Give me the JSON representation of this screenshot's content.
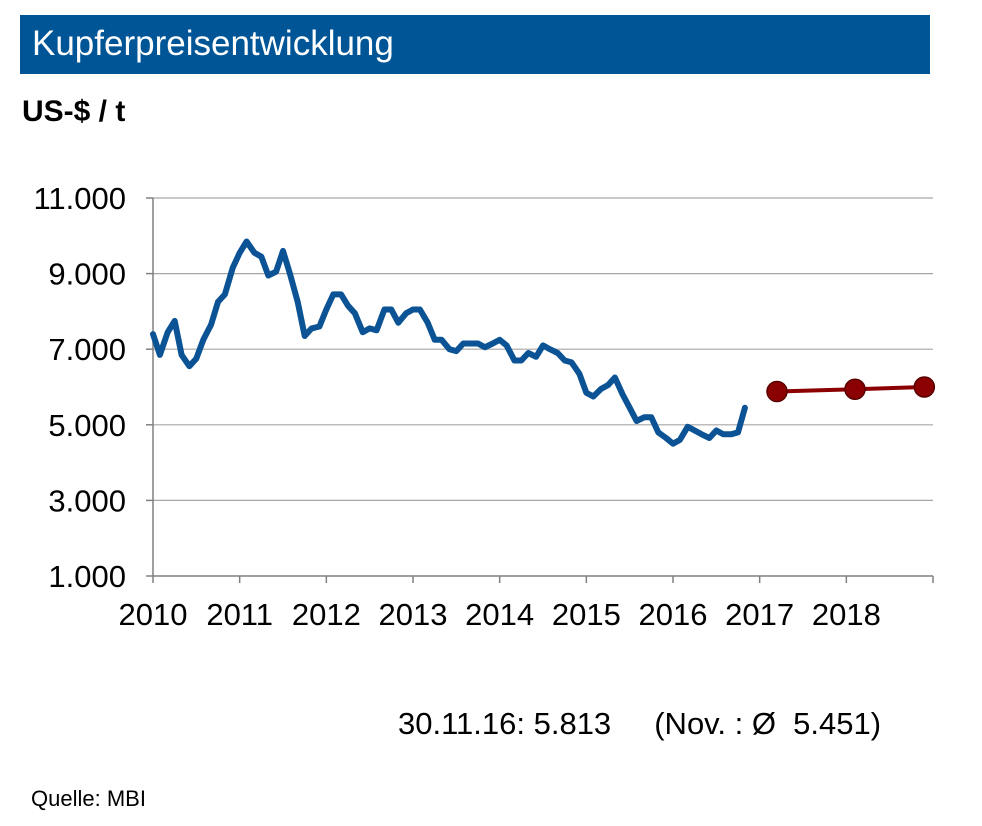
{
  "chart_data": {
    "type": "line",
    "title": "Kupferpreisentwicklung",
    "ylabel": "US-$ / t",
    "xlabel": "",
    "ylim": [
      1000,
      11000
    ],
    "xlim": [
      2010,
      2019
    ],
    "yticks": [
      {
        "value": 1000,
        "label": "1.000"
      },
      {
        "value": 3000,
        "label": "3.000"
      },
      {
        "value": 5000,
        "label": "5.000"
      },
      {
        "value": 7000,
        "label": "7.000"
      },
      {
        "value": 9000,
        "label": "9.000"
      },
      {
        "value": 11000,
        "label": "11.000"
      }
    ],
    "xticks": [
      {
        "value": 2010,
        "label": "2010"
      },
      {
        "value": 2011,
        "label": "2011"
      },
      {
        "value": 2012,
        "label": "2012"
      },
      {
        "value": 2013,
        "label": "2013"
      },
      {
        "value": 2014,
        "label": "2014"
      },
      {
        "value": 2015,
        "label": "2015"
      },
      {
        "value": 2016,
        "label": "2016"
      },
      {
        "value": 2017,
        "label": "2017"
      },
      {
        "value": 2018,
        "label": "2018"
      }
    ],
    "grid": true,
    "series": [
      {
        "color": "#0b5394",
        "style": "line",
        "points": [
          [
            2010.0,
            7400
          ],
          [
            2010.08,
            6850
          ],
          [
            2010.17,
            7450
          ],
          [
            2010.25,
            7750
          ],
          [
            2010.33,
            6850
          ],
          [
            2010.42,
            6550
          ],
          [
            2010.5,
            6750
          ],
          [
            2010.58,
            7250
          ],
          [
            2010.67,
            7650
          ],
          [
            2010.75,
            8250
          ],
          [
            2010.83,
            8450
          ],
          [
            2010.92,
            9150
          ],
          [
            2011.0,
            9550
          ],
          [
            2011.08,
            9850
          ],
          [
            2011.17,
            9550
          ],
          [
            2011.25,
            9450
          ],
          [
            2011.33,
            8950
          ],
          [
            2011.42,
            9050
          ],
          [
            2011.5,
            9600
          ],
          [
            2011.58,
            9000
          ],
          [
            2011.67,
            8250
          ],
          [
            2011.75,
            7350
          ],
          [
            2011.83,
            7550
          ],
          [
            2011.92,
            7600
          ],
          [
            2012.0,
            8050
          ],
          [
            2012.08,
            8450
          ],
          [
            2012.17,
            8450
          ],
          [
            2012.25,
            8150
          ],
          [
            2012.33,
            7950
          ],
          [
            2012.42,
            7450
          ],
          [
            2012.5,
            7550
          ],
          [
            2012.58,
            7500
          ],
          [
            2012.67,
            8050
          ],
          [
            2012.75,
            8050
          ],
          [
            2012.83,
            7700
          ],
          [
            2012.92,
            7950
          ],
          [
            2013.0,
            8050
          ],
          [
            2013.08,
            8050
          ],
          [
            2013.17,
            7700
          ],
          [
            2013.25,
            7250
          ],
          [
            2013.33,
            7250
          ],
          [
            2013.42,
            7000
          ],
          [
            2013.5,
            6950
          ],
          [
            2013.58,
            7150
          ],
          [
            2013.67,
            7150
          ],
          [
            2013.75,
            7150
          ],
          [
            2013.83,
            7050
          ],
          [
            2013.92,
            7150
          ],
          [
            2014.0,
            7250
          ],
          [
            2014.08,
            7100
          ],
          [
            2014.17,
            6700
          ],
          [
            2014.25,
            6700
          ],
          [
            2014.33,
            6900
          ],
          [
            2014.42,
            6800
          ],
          [
            2014.5,
            7100
          ],
          [
            2014.58,
            7000
          ],
          [
            2014.67,
            6900
          ],
          [
            2014.75,
            6700
          ],
          [
            2014.83,
            6650
          ],
          [
            2014.92,
            6350
          ],
          [
            2015.0,
            5850
          ],
          [
            2015.08,
            5750
          ],
          [
            2015.17,
            5950
          ],
          [
            2015.25,
            6050
          ],
          [
            2015.33,
            6250
          ],
          [
            2015.42,
            5800
          ],
          [
            2015.5,
            5450
          ],
          [
            2015.58,
            5100
          ],
          [
            2015.67,
            5200
          ],
          [
            2015.75,
            5200
          ],
          [
            2015.83,
            4800
          ],
          [
            2015.92,
            4650
          ],
          [
            2016.0,
            4500
          ],
          [
            2016.08,
            4600
          ],
          [
            2016.17,
            4950
          ],
          [
            2016.25,
            4850
          ],
          [
            2016.33,
            4750
          ],
          [
            2016.42,
            4650
          ],
          [
            2016.5,
            4850
          ],
          [
            2016.58,
            4750
          ],
          [
            2016.67,
            4750
          ],
          [
            2016.75,
            4800
          ],
          [
            2016.83,
            5450
          ]
        ]
      },
      {
        "color": "#8b0000",
        "style": "line-markers",
        "points": [
          [
            2017.2,
            5880
          ],
          [
            2018.1,
            5940
          ],
          [
            2018.9,
            6000
          ]
        ]
      }
    ]
  },
  "note": "30.11.16: 5.813     (Nov. : Ø  5.451)",
  "source": "Quelle: MBI"
}
